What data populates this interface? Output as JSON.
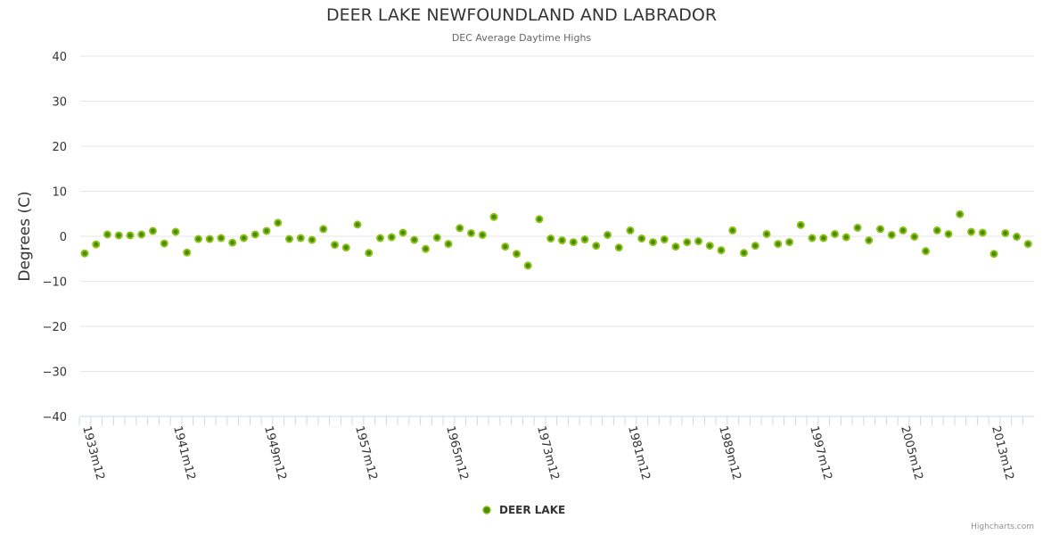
{
  "chart_data": {
    "type": "scatter",
    "title": "DEER LAKE NEWFOUNDLAND AND LABRADOR",
    "subtitle": "DEC Average Daytime Highs",
    "ylabel": "Degrees (C)",
    "xlabel": "",
    "ylim": [
      -40,
      40
    ],
    "yticks": [
      40,
      30,
      20,
      10,
      0,
      -10,
      -20,
      -30,
      -40
    ],
    "ytick_labels": [
      "40",
      "30",
      "20",
      "10",
      "0",
      "−10",
      "−20",
      "−30",
      "−40"
    ],
    "grid": true,
    "legend_position": "bottom-center",
    "xtick_labels": [
      "1933m12",
      "1941m12",
      "1949m12",
      "1957m12",
      "1965m12",
      "1973m12",
      "1981m12",
      "1989m12",
      "1997m12",
      "2005m12",
      "2013m12"
    ],
    "series": [
      {
        "name": "DEER LAKE",
        "color": "#7cb300",
        "x_start_year": 1933,
        "values": [
          -3.8,
          -1.8,
          0.4,
          0.2,
          0.2,
          0.4,
          1.2,
          -1.6,
          1.0,
          -3.6,
          -0.6,
          -0.6,
          -0.4,
          -1.4,
          -0.4,
          0.4,
          1.2,
          3.0,
          -0.6,
          -0.4,
          -0.8,
          1.6,
          -1.9,
          -2.5,
          2.6,
          -3.7,
          -0.4,
          -0.2,
          0.8,
          -0.8,
          -2.8,
          -0.3,
          -1.7,
          1.8,
          0.7,
          0.3,
          4.3,
          -2.3,
          -3.9,
          -6.5,
          3.8,
          -0.5,
          -0.9,
          -1.3,
          -0.7,
          -2.1,
          0.3,
          -2.5,
          1.3,
          -0.5,
          -1.3,
          -0.7,
          -2.3,
          -1.3,
          -1.1,
          -2.1,
          -3.1,
          1.3,
          -3.7,
          -2.1,
          0.5,
          -1.7,
          -1.3,
          2.5,
          -0.4,
          -0.4,
          0.5,
          -0.2,
          1.9,
          -0.9,
          1.6,
          0.3,
          1.3,
          -0.1,
          -3.3,
          1.3,
          0.5,
          4.9,
          1.0,
          0.8,
          -3.9,
          0.7,
          -0.1,
          -1.7
        ]
      }
    ]
  },
  "credits": "Highcharts.com"
}
